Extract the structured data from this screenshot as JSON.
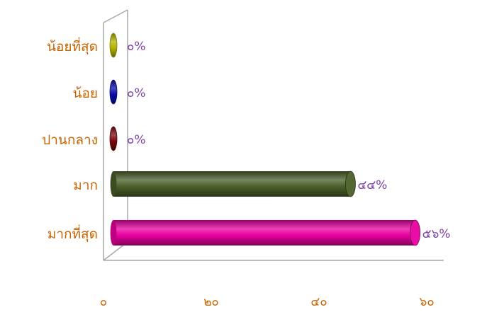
{
  "chart_data": {
    "type": "bar",
    "orientation": "horizontal",
    "categories": [
      "น้อยที่สุด",
      "น้อย",
      "ปานกลาง",
      "มาก",
      "มากที่สุด"
    ],
    "values": [
      0,
      0,
      0,
      44,
      56
    ],
    "value_labels": [
      "๐%",
      "๐%",
      "๐%",
      "๔๔%",
      "๕๖%"
    ],
    "bar_colors": [
      "#b3b300",
      "#0a0aa8",
      "#7a0a0a",
      "#4a5f2a",
      "#e800a0"
    ],
    "x_ticks": [
      0,
      20,
      40,
      60
    ],
    "x_tick_labels": [
      "๐",
      "๒๐",
      "๔๐",
      "๖๐"
    ],
    "xlim": [
      0,
      60
    ],
    "grid": false,
    "legend": "none",
    "category_label_color": "#c86400",
    "value_label_color": "#7a3fa8",
    "tick_label_color": "#c86400"
  }
}
